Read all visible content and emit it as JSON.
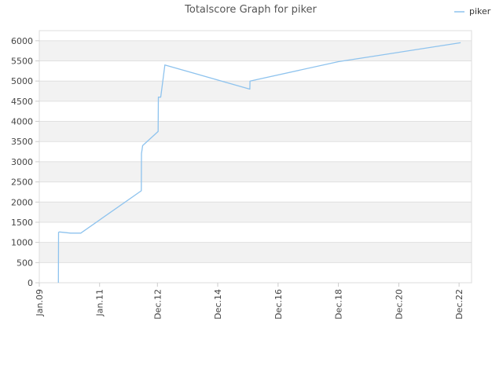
{
  "chart_data": {
    "type": "line",
    "title": "Totalscore Graph for piker",
    "xlabel": "",
    "ylabel": "",
    "ylim": [
      0,
      6250
    ],
    "y_ticks": [
      0,
      500,
      1000,
      1500,
      2000,
      2500,
      3000,
      3500,
      4000,
      4500,
      5000,
      5500,
      6000
    ],
    "xlim": [
      "2009-01-01",
      "2023-05-01"
    ],
    "x_ticks": [
      {
        "label": "Jan.09",
        "date": "2009-01-01"
      },
      {
        "label": "Jan.11",
        "date": "2011-01-01"
      },
      {
        "label": "Dec.12",
        "date": "2012-12-01"
      },
      {
        "label": "Dec.14",
        "date": "2014-12-01"
      },
      {
        "label": "Dec.16",
        "date": "2016-12-01"
      },
      {
        "label": "Dec.18",
        "date": "2018-12-01"
      },
      {
        "label": "Dec.20",
        "date": "2020-12-01"
      },
      {
        "label": "Dec.22",
        "date": "2022-12-01"
      }
    ],
    "grid": true,
    "legend_position": "top-right",
    "colors": {
      "series": "#8ec3ee",
      "band": "#f2f2f2",
      "grid": "#e0e0e0",
      "axis": "#cccccc"
    },
    "series": [
      {
        "name": "piker",
        "x": [
          "2009-08-20",
          "2009-08-22",
          "2009-09-01",
          "2010-01-15",
          "2010-05-20",
          "2010-06-01",
          "2012-05-20",
          "2012-05-22",
          "2012-06-05",
          "2012-12-10",
          "2012-12-12",
          "2013-01-10",
          "2013-03-01",
          "2015-12-25",
          "2015-12-27",
          "2018-12-01",
          "2022-12-20"
        ],
        "y": [
          0,
          1250,
          1260,
          1230,
          1230,
          1250,
          2280,
          3200,
          3400,
          3750,
          4600,
          4600,
          5400,
          4800,
          5000,
          5480,
          5950
        ]
      }
    ]
  }
}
